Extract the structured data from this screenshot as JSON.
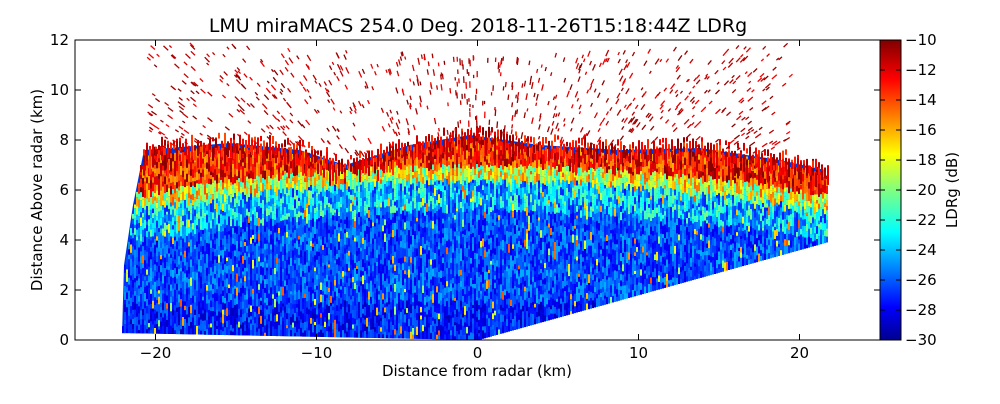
{
  "chart_data": {
    "type": "heatmap",
    "title": "LMU miraMACS 254.0 Deg. 2018-11-26T15:18:44Z  LDRg",
    "xlabel": "Distance from radar (km)",
    "ylabel": "Distance Above radar  (km)",
    "xlim": [
      -25,
      25
    ],
    "ylim": [
      0,
      12
    ],
    "x_ticks": [
      -20,
      -10,
      0,
      10,
      20
    ],
    "x_tick_labels": [
      "−20",
      "−10",
      "0",
      "10",
      "20"
    ],
    "y_ticks": [
      0,
      2,
      4,
      6,
      8,
      10,
      12
    ],
    "y_tick_labels": [
      "0",
      "2",
      "4",
      "6",
      "8",
      "10",
      "12"
    ],
    "grid": false,
    "colorbar": {
      "label": "LDRg (dB)",
      "colormap": "jet",
      "range": [
        -30,
        -10
      ],
      "ticks": [
        -30,
        -28,
        -26,
        -24,
        -22,
        -20,
        -18,
        -16,
        -14,
        -12,
        -10
      ],
      "tick_labels": [
        "−30",
        "−28",
        "−26",
        "−24",
        "−22",
        "−20",
        "−18",
        "−16",
        "−14",
        "−12",
        "−10"
      ],
      "placement": "right"
    },
    "scan": {
      "azimuth_deg": 254.0,
      "x_extent_km": [
        -22,
        21.8
      ],
      "cloud_layers": [
        {
          "name": "",
          "height_km": [
            0,
            4.5
          ],
          "ldr_db": -27
        },
        {
          "name": "",
          "height_km": [
            4.5,
            6.5
          ],
          "ldr_db": -24
        },
        {
          "name": "",
          "height_km": [
            6.5,
            8
          ],
          "ldr_db": -14
        },
        {
          "name": "",
          "height_km": [
            8,
            12
          ],
          "ldr_db": -10
        }
      ]
    }
  }
}
